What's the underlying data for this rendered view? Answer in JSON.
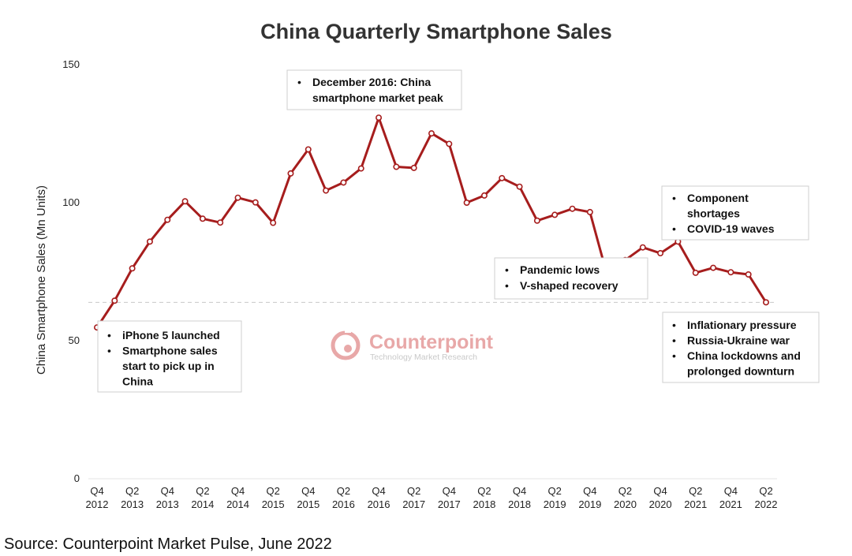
{
  "chart_data": {
    "type": "line",
    "title": "China Quarterly Smartphone Sales",
    "ylabel": "China Smartphone Sales (Mn Units)",
    "xlabel": "",
    "ylim": [
      0,
      150
    ],
    "yticks": [
      0,
      50,
      100,
      150
    ],
    "grid": false,
    "x": [
      "Q4 2012",
      "Q1 2013",
      "Q2 2013",
      "Q3 2013",
      "Q4 2013",
      "Q1 2014",
      "Q2 2014",
      "Q3 2014",
      "Q4 2014",
      "Q1 2015",
      "Q2 2015",
      "Q3 2015",
      "Q4 2015",
      "Q1 2016",
      "Q2 2016",
      "Q3 2016",
      "Q4 2016",
      "Q1 2017",
      "Q2 2017",
      "Q3 2017",
      "Q4 2017",
      "Q1 2018",
      "Q2 2018",
      "Q3 2018",
      "Q4 2018",
      "Q1 2019",
      "Q2 2019",
      "Q3 2019",
      "Q4 2019",
      "Q1 2020",
      "Q2 2020",
      "Q3 2020",
      "Q4 2020",
      "Q1 2021",
      "Q2 2021",
      "Q3 2021",
      "Q4 2021",
      "Q1 2022",
      "Q2 2022"
    ],
    "tick_labels": [
      {
        "q": "Q4",
        "y": "2012"
      },
      {
        "q": "Q2",
        "y": "2013"
      },
      {
        "q": "Q4",
        "y": "2013"
      },
      {
        "q": "Q2",
        "y": "2014"
      },
      {
        "q": "Q4",
        "y": "2014"
      },
      {
        "q": "Q2",
        "y": "2015"
      },
      {
        "q": "Q4",
        "y": "2015"
      },
      {
        "q": "Q2",
        "y": "2016"
      },
      {
        "q": "Q4",
        "y": "2016"
      },
      {
        "q": "Q2",
        "y": "2017"
      },
      {
        "q": "Q4",
        "y": "2017"
      },
      {
        "q": "Q2",
        "y": "2018"
      },
      {
        "q": "Q4",
        "y": "2018"
      },
      {
        "q": "Q2",
        "y": "2019"
      },
      {
        "q": "Q4",
        "y": "2019"
      },
      {
        "q": "Q2",
        "y": "2020"
      },
      {
        "q": "Q4",
        "y": "2020"
      },
      {
        "q": "Q2",
        "y": "2021"
      },
      {
        "q": "Q4",
        "y": "2021"
      },
      {
        "q": "Q2",
        "y": "2022"
      }
    ],
    "series": [
      {
        "values": [
          54.8,
          64.5,
          76.2,
          85.9,
          93.8,
          100.5,
          94.2,
          92.8,
          101.8,
          100.1,
          92.7,
          110.6,
          119.3,
          104.4,
          107.3,
          112.4,
          130.8,
          113.0,
          112.6,
          125.1,
          121.3,
          100.0,
          102.6,
          108.9,
          105.8,
          93.5,
          95.6,
          97.8,
          96.6,
          73.1,
          79.2,
          83.8,
          81.7,
          85.9,
          74.6,
          76.4,
          74.8,
          74.0,
          63.9
        ],
        "color": "#a61d1d"
      }
    ],
    "reference_line": {
      "y": 63.9,
      "style": "dashed",
      "color": "#c8c8c8"
    },
    "annotations": [
      {
        "lines": [
          {
            "bullet": true,
            "text": "December 2016: China"
          },
          {
            "bullet": false,
            "text": "smartphone market peak"
          }
        ]
      },
      {
        "lines": [
          {
            "bullet": true,
            "text": "Component"
          },
          {
            "bullet": false,
            "text": "shortages"
          },
          {
            "bullet": true,
            "text": "COVID-19 waves"
          }
        ]
      },
      {
        "lines": [
          {
            "bullet": true,
            "text": "Pandemic lows"
          },
          {
            "bullet": true,
            "text": "V-shaped recovery"
          }
        ]
      },
      {
        "lines": [
          {
            "bullet": true,
            "text": "iPhone 5 launched"
          },
          {
            "bullet": true,
            "text": "Smartphone sales"
          },
          {
            "bullet": false,
            "text": "start to pick up in"
          },
          {
            "bullet": false,
            "text": "China"
          }
        ]
      },
      {
        "lines": [
          {
            "bullet": true,
            "text": "Inflationary pressure"
          },
          {
            "bullet": true,
            "text": "Russia-Ukraine war"
          },
          {
            "bullet": true,
            "text": "China lockdowns and"
          },
          {
            "bullet": false,
            "text": "prolonged downturn"
          }
        ]
      }
    ],
    "bullet_glyph": "•"
  },
  "watermark": {
    "name": "Counterpoint",
    "tagline": "Technology Market Research",
    "logo_icon": "counterpoint-logo-icon",
    "color": "#e8a8a8"
  },
  "source": "Source: Counterpoint Market Pulse, June 2022"
}
